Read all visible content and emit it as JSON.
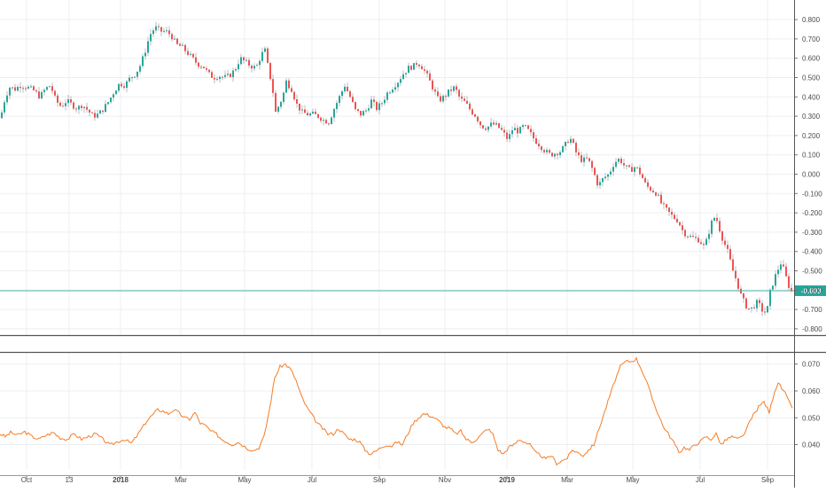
{
  "colors": {
    "up": "#26a69a",
    "down": "#ef5350",
    "wick": "#9aa0a6",
    "grid": "#eceff2",
    "axis_text": "#4a4a4a",
    "price_line": "#4db6ac",
    "indicator": "#f57c24",
    "separator": "#555555"
  },
  "chart_data": [
    {
      "type": "candlestick",
      "title": "",
      "xlabel": "",
      "ylabel": "",
      "ylim": [
        -0.84,
        0.84
      ],
      "y_ticks": [
        "0.800",
        "0.700",
        "0.600",
        "0.500",
        "0.400",
        "0.300",
        "0.200",
        "0.100",
        "0.000",
        "-0.100",
        "-0.200",
        "-0.300",
        "-0.400",
        "-0.500",
        "-0.600",
        "-0.700",
        "-0.800"
      ],
      "x_ticks": [
        "Oct",
        "13",
        "2018",
        "Mar",
        "May",
        "Jul",
        "Sep",
        "Nov",
        "2019",
        "Mar",
        "May",
        "Jul",
        "Sep"
      ],
      "last_value_label": "-0.603",
      "last_value": -0.603,
      "grid": true,
      "close_path": [
        [
          0,
          0.3
        ],
        [
          5,
          0.4
        ],
        [
          10,
          0.45
        ],
        [
          16,
          0.44
        ],
        [
          22,
          0.46
        ],
        [
          30,
          0.45
        ],
        [
          38,
          0.43
        ],
        [
          44,
          0.4
        ],
        [
          50,
          0.44
        ],
        [
          56,
          0.46
        ],
        [
          62,
          0.38
        ],
        [
          68,
          0.35
        ],
        [
          74,
          0.38
        ],
        [
          80,
          0.36
        ],
        [
          86,
          0.34
        ],
        [
          92,
          0.36
        ],
        [
          98,
          0.33
        ],
        [
          104,
          0.3
        ],
        [
          110,
          0.31
        ],
        [
          116,
          0.34
        ],
        [
          122,
          0.38
        ],
        [
          128,
          0.43
        ],
        [
          134,
          0.47
        ],
        [
          140,
          0.46
        ],
        [
          146,
          0.5
        ],
        [
          152,
          0.52
        ],
        [
          158,
          0.57
        ],
        [
          163,
          0.64
        ],
        [
          168,
          0.72
        ],
        [
          174,
          0.76
        ],
        [
          180,
          0.74
        ],
        [
          186,
          0.74
        ],
        [
          192,
          0.72
        ],
        [
          198,
          0.67
        ],
        [
          204,
          0.66
        ],
        [
          210,
          0.63
        ],
        [
          216,
          0.6
        ],
        [
          222,
          0.57
        ],
        [
          228,
          0.56
        ],
        [
          234,
          0.52
        ],
        [
          240,
          0.5
        ],
        [
          246,
          0.51
        ],
        [
          252,
          0.5
        ],
        [
          258,
          0.51
        ],
        [
          264,
          0.54
        ],
        [
          270,
          0.6
        ],
        [
          276,
          0.58
        ],
        [
          282,
          0.56
        ],
        [
          288,
          0.55
        ],
        [
          294,
          0.62
        ],
        [
          298,
          0.64
        ],
        [
          302,
          0.54
        ],
        [
          306,
          0.46
        ],
        [
          310,
          0.32
        ],
        [
          314,
          0.36
        ],
        [
          318,
          0.4
        ],
        [
          322,
          0.48
        ],
        [
          328,
          0.44
        ],
        [
          334,
          0.36
        ],
        [
          340,
          0.32
        ],
        [
          346,
          0.31
        ],
        [
          352,
          0.31
        ],
        [
          358,
          0.3
        ],
        [
          364,
          0.28
        ],
        [
          370,
          0.27
        ],
        [
          376,
          0.34
        ],
        [
          382,
          0.4
        ],
        [
          388,
          0.46
        ],
        [
          394,
          0.4
        ],
        [
          400,
          0.33
        ],
        [
          406,
          0.31
        ],
        [
          412,
          0.33
        ],
        [
          418,
          0.38
        ],
        [
          424,
          0.34
        ],
        [
          430,
          0.37
        ],
        [
          436,
          0.42
        ],
        [
          442,
          0.45
        ],
        [
          448,
          0.48
        ],
        [
          454,
          0.52
        ],
        [
          460,
          0.55
        ],
        [
          466,
          0.56
        ],
        [
          470,
          0.58
        ],
        [
          476,
          0.55
        ],
        [
          482,
          0.5
        ],
        [
          488,
          0.44
        ],
        [
          494,
          0.38
        ],
        [
          500,
          0.4
        ],
        [
          506,
          0.43
        ],
        [
          512,
          0.45
        ],
        [
          518,
          0.39
        ],
        [
          524,
          0.37
        ],
        [
          530,
          0.33
        ],
        [
          536,
          0.3
        ],
        [
          542,
          0.25
        ],
        [
          548,
          0.24
        ],
        [
          554,
          0.26
        ],
        [
          560,
          0.25
        ],
        [
          566,
          0.22
        ],
        [
          572,
          0.18
        ],
        [
          578,
          0.24
        ],
        [
          584,
          0.22
        ],
        [
          590,
          0.25
        ],
        [
          596,
          0.22
        ],
        [
          602,
          0.18
        ],
        [
          608,
          0.15
        ],
        [
          614,
          0.12
        ],
        [
          620,
          0.1
        ],
        [
          626,
          0.11
        ],
        [
          632,
          0.12
        ],
        [
          638,
          0.16
        ],
        [
          642,
          0.19
        ],
        [
          646,
          0.15
        ],
        [
          650,
          0.1
        ],
        [
          656,
          0.07
        ],
        [
          662,
          0.08
        ],
        [
          668,
          0.02
        ],
        [
          674,
          -0.06
        ],
        [
          680,
          -0.02
        ],
        [
          686,
          0.0
        ],
        [
          692,
          0.06
        ],
        [
          698,
          0.08
        ],
        [
          704,
          0.04
        ],
        [
          710,
          0.02
        ],
        [
          716,
          0.04
        ],
        [
          722,
          0.0
        ],
        [
          728,
          -0.06
        ],
        [
          734,
          -0.08
        ],
        [
          740,
          -0.1
        ],
        [
          746,
          -0.16
        ],
        [
          752,
          -0.19
        ],
        [
          758,
          -0.22
        ],
        [
          764,
          -0.24
        ],
        [
          770,
          -0.3
        ],
        [
          776,
          -0.32
        ],
        [
          782,
          -0.33
        ],
        [
          788,
          -0.34
        ],
        [
          794,
          -0.38
        ],
        [
          800,
          -0.28
        ],
        [
          804,
          -0.22
        ],
        [
          808,
          -0.24
        ],
        [
          814,
          -0.33
        ],
        [
          820,
          -0.4
        ],
        [
          826,
          -0.5
        ],
        [
          830,
          -0.55
        ],
        [
          836,
          -0.64
        ],
        [
          842,
          -0.69
        ],
        [
          846,
          -0.7
        ],
        [
          850,
          -0.68
        ],
        [
          854,
          -0.66
        ],
        [
          858,
          -0.7
        ],
        [
          864,
          -0.72
        ],
        [
          868,
          -0.61
        ],
        [
          872,
          -0.55
        ],
        [
          876,
          -0.5
        ],
        [
          880,
          -0.46
        ],
        [
          884,
          -0.5
        ],
        [
          888,
          -0.57
        ],
        [
          892,
          -0.603
        ]
      ]
    },
    {
      "type": "line",
      "title": "",
      "series_name": "",
      "ylim": [
        0.0306,
        0.0742
      ],
      "y_ticks": [
        "0.070",
        "0.060",
        "0.050",
        "0.040"
      ],
      "path": [
        [
          0,
          0.044
        ],
        [
          6,
          0.043
        ],
        [
          12,
          0.0445
        ],
        [
          20,
          0.0435
        ],
        [
          28,
          0.0448
        ],
        [
          36,
          0.043
        ],
        [
          44,
          0.042
        ],
        [
          52,
          0.0435
        ],
        [
          60,
          0.0445
        ],
        [
          68,
          0.0425
        ],
        [
          76,
          0.042
        ],
        [
          84,
          0.044
        ],
        [
          92,
          0.042
        ],
        [
          100,
          0.043
        ],
        [
          108,
          0.044
        ],
        [
          116,
          0.042
        ],
        [
          124,
          0.0398
        ],
        [
          132,
          0.041
        ],
        [
          140,
          0.042
        ],
        [
          148,
          0.0405
        ],
        [
          154,
          0.043
        ],
        [
          160,
          0.046
        ],
        [
          166,
          0.049
        ],
        [
          172,
          0.051
        ],
        [
          178,
          0.053
        ],
        [
          184,
          0.0525
        ],
        [
          190,
          0.0515
        ],
        [
          196,
          0.053
        ],
        [
          202,
          0.0518
        ],
        [
          208,
          0.05
        ],
        [
          214,
          0.0495
        ],
        [
          220,
          0.052
        ],
        [
          226,
          0.048
        ],
        [
          232,
          0.047
        ],
        [
          238,
          0.045
        ],
        [
          244,
          0.044
        ],
        [
          250,
          0.042
        ],
        [
          256,
          0.041
        ],
        [
          262,
          0.04
        ],
        [
          268,
          0.041
        ],
        [
          274,
          0.0398
        ],
        [
          280,
          0.0385
        ],
        [
          286,
          0.0378
        ],
        [
          292,
          0.0388
        ],
        [
          298,
          0.043
        ],
        [
          304,
          0.053
        ],
        [
          310,
          0.065
        ],
        [
          316,
          0.069
        ],
        [
          322,
          0.07
        ],
        [
          328,
          0.068
        ],
        [
          334,
          0.064
        ],
        [
          340,
          0.058
        ],
        [
          346,
          0.054
        ],
        [
          352,
          0.051
        ],
        [
          358,
          0.048
        ],
        [
          364,
          0.046
        ],
        [
          370,
          0.044
        ],
        [
          376,
          0.044
        ],
        [
          382,
          0.046
        ],
        [
          388,
          0.044
        ],
        [
          394,
          0.042
        ],
        [
          400,
          0.042
        ],
        [
          406,
          0.041
        ],
        [
          412,
          0.038
        ],
        [
          418,
          0.0365
        ],
        [
          424,
          0.0375
        ],
        [
          430,
          0.039
        ],
        [
          436,
          0.04
        ],
        [
          442,
          0.0395
        ],
        [
          448,
          0.041
        ],
        [
          454,
          0.04
        ],
        [
          460,
          0.044
        ],
        [
          466,
          0.048
        ],
        [
          472,
          0.05
        ],
        [
          478,
          0.0515
        ],
        [
          484,
          0.051
        ],
        [
          490,
          0.05
        ],
        [
          496,
          0.0485
        ],
        [
          502,
          0.0465
        ],
        [
          508,
          0.046
        ],
        [
          514,
          0.044
        ],
        [
          520,
          0.045
        ],
        [
          526,
          0.042
        ],
        [
          532,
          0.041
        ],
        [
          538,
          0.042
        ],
        [
          544,
          0.044
        ],
        [
          550,
          0.046
        ],
        [
          556,
          0.044
        ],
        [
          562,
          0.038
        ],
        [
          568,
          0.0365
        ],
        [
          574,
          0.039
        ],
        [
          580,
          0.04
        ],
        [
          586,
          0.042
        ],
        [
          592,
          0.041
        ],
        [
          598,
          0.04
        ],
        [
          604,
          0.037
        ],
        [
          610,
          0.036
        ],
        [
          616,
          0.0345
        ],
        [
          622,
          0.036
        ],
        [
          628,
          0.033
        ],
        [
          634,
          0.034
        ],
        [
          640,
          0.035
        ],
        [
          646,
          0.038
        ],
        [
          652,
          0.037
        ],
        [
          658,
          0.036
        ],
        [
          664,
          0.038
        ],
        [
          670,
          0.04
        ],
        [
          676,
          0.046
        ],
        [
          682,
          0.052
        ],
        [
          688,
          0.058
        ],
        [
          694,
          0.064
        ],
        [
          700,
          0.069
        ],
        [
          706,
          0.071
        ],
        [
          712,
          0.071
        ],
        [
          718,
          0.072
        ],
        [
          724,
          0.068
        ],
        [
          730,
          0.063
        ],
        [
          736,
          0.057
        ],
        [
          742,
          0.052
        ],
        [
          748,
          0.047
        ],
        [
          754,
          0.044
        ],
        [
          760,
          0.041
        ],
        [
          766,
          0.037
        ],
        [
          772,
          0.039
        ],
        [
          778,
          0.038
        ],
        [
          784,
          0.04
        ],
        [
          790,
          0.041
        ],
        [
          796,
          0.043
        ],
        [
          802,
          0.042
        ],
        [
          808,
          0.044
        ],
        [
          814,
          0.04
        ],
        [
          820,
          0.042
        ],
        [
          826,
          0.043
        ],
        [
          832,
          0.042
        ],
        [
          838,
          0.043
        ],
        [
          844,
          0.047
        ],
        [
          850,
          0.051
        ],
        [
          856,
          0.054
        ],
        [
          862,
          0.056
        ],
        [
          868,
          0.052
        ],
        [
          874,
          0.06
        ],
        [
          878,
          0.063
        ],
        [
          882,
          0.061
        ],
        [
          886,
          0.059
        ],
        [
          890,
          0.056
        ],
        [
          894,
          0.054
        ]
      ]
    }
  ]
}
